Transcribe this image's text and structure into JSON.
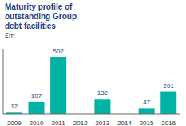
{
  "chart_data": {
    "type": "bar",
    "title": "Maturity profile of\noutstanding Group\ndebt facilities",
    "ylabel": "£m",
    "categories": [
      "2009",
      "2010",
      "2011",
      "2012",
      "2013",
      "2014",
      "2015",
      "2016"
    ],
    "values": [
      12,
      107,
      502,
      0,
      132,
      0,
      47,
      201
    ],
    "color": "#00b3a4",
    "ylim": [
      0,
      580
    ],
    "data_labels": true,
    "tick_labels": "x",
    "grid": false
  }
}
